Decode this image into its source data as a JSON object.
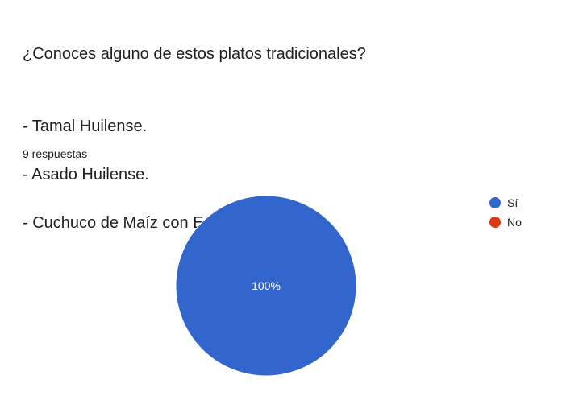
{
  "question": {
    "title": "¿Conoces alguno de estos platos tradicionales?",
    "items": [
      "-  Tamal Huilense.",
      "-  Asado Huilense.",
      "-  Cuchuco de Maíz con Espinazo de Cerdo."
    ]
  },
  "responses_label": "9 respuestas",
  "chart_data": {
    "type": "pie",
    "categories": [
      "Sí",
      "No"
    ],
    "values": [
      100,
      0
    ],
    "data_labels": [
      "100%"
    ],
    "colors": [
      "#3366cc",
      "#dc3912"
    ],
    "legend_position": "right"
  }
}
